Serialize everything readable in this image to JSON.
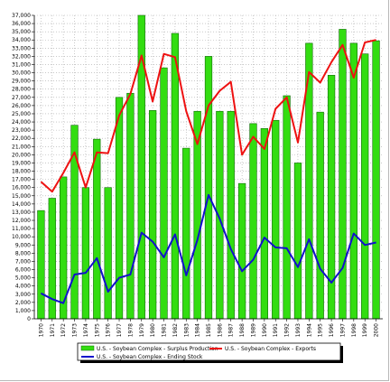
{
  "chart_data": {
    "type": "bar",
    "categories": [
      "1970",
      "1971",
      "1972",
      "1973",
      "1974",
      "1975",
      "1976",
      "1977",
      "1978",
      "1979",
      "1980",
      "1981",
      "1982",
      "1983",
      "1984",
      "1985",
      "1986",
      "1987",
      "1988",
      "1989",
      "1990",
      "1991",
      "1992",
      "1993",
      "1994",
      "1995",
      "1996",
      "1997",
      "1998",
      "1999",
      "2000"
    ],
    "ylim": [
      0,
      37000
    ],
    "ytick_step": 1000,
    "grid": true,
    "legend_position": "bottom",
    "series": [
      {
        "name": "U.S. - Soybean Complex - Surplus Production",
        "kind": "bar",
        "color": "#33dd11",
        "values": [
          13200,
          14700,
          17300,
          23600,
          16000,
          21900,
          16000,
          27000,
          27500,
          37500,
          25400,
          30600,
          34800,
          20800,
          25300,
          32000,
          25300,
          25300,
          16500,
          23800,
          23200,
          24200,
          27200,
          19000,
          33600,
          25200,
          29700,
          35300,
          33600,
          32300,
          33900
        ]
      },
      {
        "name": "U.S. - Soybean Complex - Exports",
        "kind": "line",
        "color": "#ee1111",
        "values": [
          16700,
          15500,
          17800,
          20300,
          16000,
          20300,
          20200,
          24800,
          27400,
          32100,
          26500,
          32300,
          31900,
          25300,
          21300,
          26000,
          27800,
          28900,
          20000,
          22200,
          20700,
          25600,
          27000,
          21500,
          30100,
          28800,
          31300,
          33400,
          29400,
          33700,
          34000
        ]
      },
      {
        "name": "U.S. - Soybean Complex - Ending Stock",
        "kind": "line",
        "color": "#1111cc",
        "values": [
          3100,
          2400,
          1900,
          5400,
          5600,
          7400,
          3300,
          5000,
          5400,
          10500,
          9400,
          7500,
          10300,
          5300,
          9600,
          15100,
          12200,
          8500,
          5800,
          7200,
          9900,
          8700,
          8600,
          6300,
          9700,
          6100,
          4400,
          6200,
          10400,
          9000,
          9300
        ]
      }
    ]
  }
}
